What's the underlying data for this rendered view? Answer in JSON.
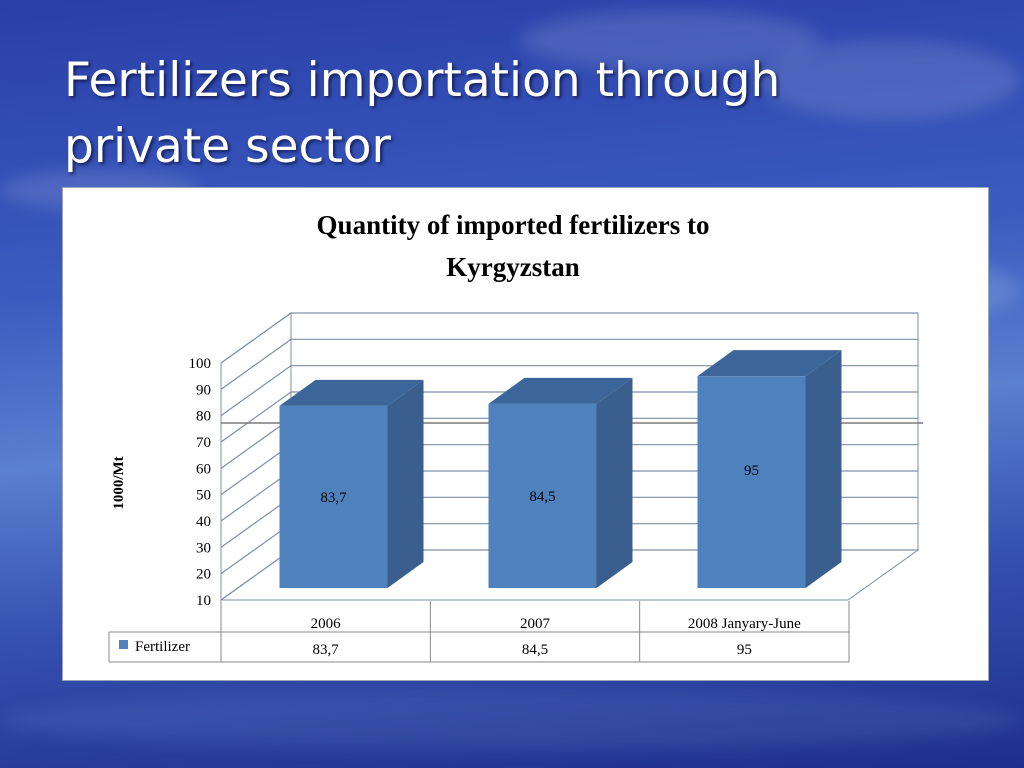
{
  "slide": {
    "title_line1": "Fertilizers importation through",
    "title_line2": "private sector"
  },
  "colors": {
    "bar_front": "#4f81bd",
    "bar_side": "#3a5f8f",
    "bar_top": "#3c6699",
    "grid": "#7f8fa6"
  },
  "chart_data": {
    "type": "bar",
    "title_line1": "Quantity of  imported fertilizers to",
    "title_line2": "Kyrgyzstan",
    "ylabel": "1000/Mt",
    "xlabel": "",
    "ylim": [
      10,
      100
    ],
    "yticks": [
      "100",
      "90",
      "80",
      "70",
      "60",
      "50",
      "40",
      "30",
      "20",
      "10"
    ],
    "categories": [
      "2006",
      "2007",
      "2008 Janyary-June"
    ],
    "series": [
      {
        "name": "Fertilizer",
        "values": [
          83.7,
          84.5,
          95
        ],
        "labels": [
          "83,7",
          "84,5",
          "95"
        ]
      }
    ],
    "legend": "bottom-left data table",
    "grid": true,
    "style": "3d"
  }
}
